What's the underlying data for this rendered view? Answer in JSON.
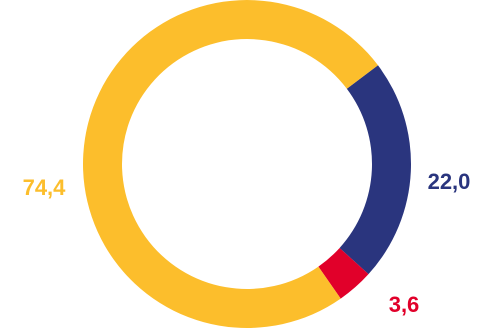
{
  "chart_data": {
    "type": "pie",
    "variant": "donut",
    "title": "",
    "slices": [
      {
        "label": "22,0",
        "value": 22.0,
        "color": "#2a357e",
        "label_position": "right"
      },
      {
        "label": "3,6",
        "value": 3.6,
        "color": "#e1002a",
        "label_position": "bottom-right"
      },
      {
        "label": "74,4",
        "value": 74.4,
        "color": "#fcbe2c",
        "label_position": "left"
      }
    ],
    "start_angle_deg": 53,
    "direction": "clockwise",
    "legend": "none"
  }
}
